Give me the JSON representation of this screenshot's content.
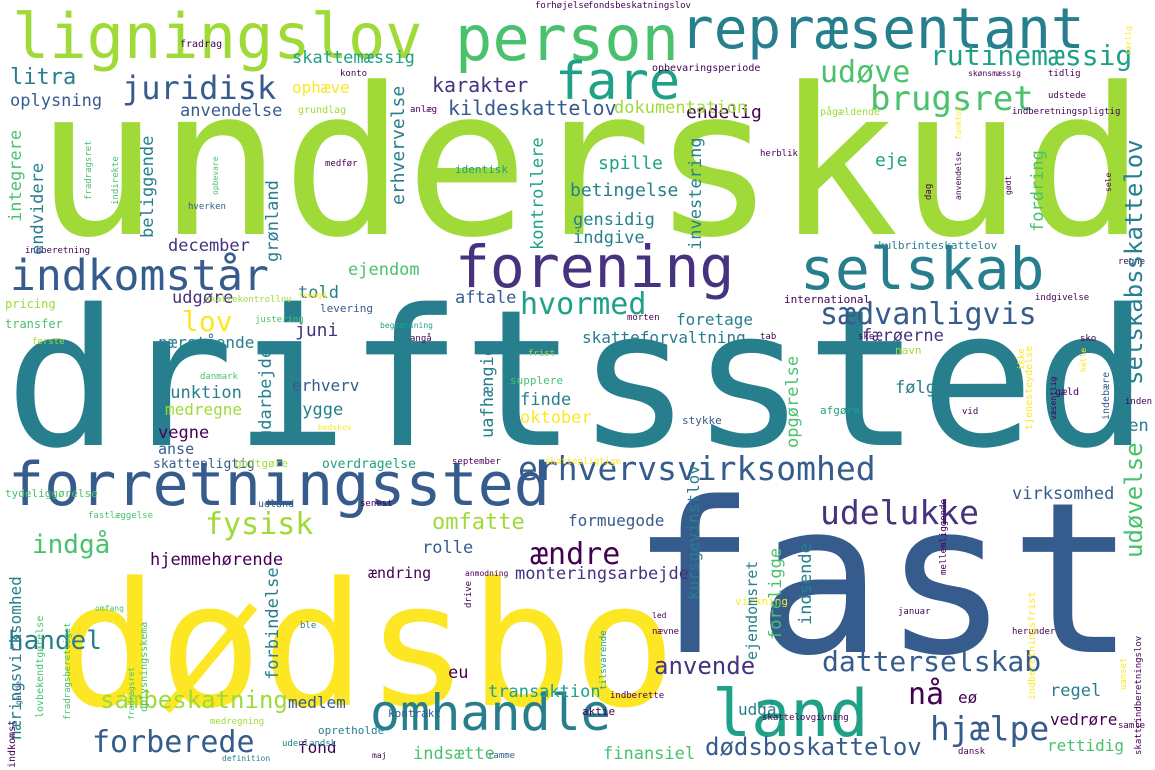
{
  "palette": {
    "yellow": "#fde725",
    "lime": "#a0da39",
    "green": "#4ac16d",
    "teal": "#1fa187",
    "blue": "#277f8e",
    "indigo": "#365c8d",
    "purple": "#46327e",
    "dark": "#440154",
    "background": "#ffffff"
  },
  "words": {
    "underskud": "underskud",
    "driftssted": "driftssted",
    "dodsbo": "dødsbo",
    "fast": "fast",
    "ligningslov": "ligningslov",
    "person": "person",
    "repraesentant": "repræsentant",
    "fare": "fare",
    "forening": "forening",
    "selskab": "selskab",
    "indkomstaar": "indkomstår",
    "forretningssted": "forretningssted",
    "omhandle": "omhandle",
    "land": "land",
    "erhvervsvirksomhed": "erhvervsvirksomhed",
    "udelukke": "udelukke",
    "datterselskab": "datterselskab",
    "hjaelpe": "hjælpe",
    "forberede": "forberede",
    "sambeskatning": "sambeskatning",
    "dodsboskattelov": "dødsboskattelov",
    "juridisk": "juridisk",
    "brugsret": "brugsret",
    "udove": "udøve",
    "rutinemaessig": "rutinemæssig",
    "hvormed": "hvormed",
    "saedvanligvis": "sædvanligvis",
    "selskabsskattelov": "selskabsskattelov",
    "fysisk": "fysisk",
    "indgaa": "indgå",
    "aendre": "ændre",
    "naa": "nå",
    "anvende": "anvende",
    "udovelse": "udøvelse",
    "karakter": "karakter",
    "lov": "lov",
    "litra": "litra",
    "handel": "handel",
    "omfatte": "omfatte",
    "endelig": "endelig",
    "skattemaessig": "skattemæssig",
    "ophaeve": "ophæve",
    "oplysning": "oplysning",
    "anvendelse": "anvendelse",
    "kildeskattelov": "kildeskattelov",
    "dokumentation": "dokumentation",
    "erhvervelse": "erhvervelse",
    "investering": "investering",
    "fordring": "fordring",
    "spille": "spille",
    "eje": "eje",
    "betingelse": "betingelse",
    "beliggende": "beliggende",
    "kontrollere": "kontrollere",
    "gensidig": "gensidig",
    "indgive": "indgive",
    "december": "december",
    "gronland": "grønland",
    "endvidere": "endvidere",
    "integrere": "integrere",
    "told": "told",
    "ejendom": "ejendom",
    "aftale": "aftale",
    "udgore": "udgøre",
    "juni": "juni",
    "naerstaaende": "nærstående",
    "foretage": "foretage",
    "skatteforvaltning": "skatteforvaltning",
    "faeroerne": "færøerne",
    "funktion": "funktion",
    "medregne": "medregne",
    "erhverv": "erhverv",
    "bygge": "bygge",
    "folge": "følge",
    "finde": "finde",
    "oktober": "oktober",
    "udarbejde": "udarbejde",
    "vegne": "vegne",
    "anse": "anse",
    "uafhaengig": "uafhængig",
    "opgorelse": "opgørelse",
    "kursgevinstlov": "kursgevinstlov",
    "virksomhed": "virksomhed",
    "sen": "sen",
    "hjemmehorende": "hjemmehørende",
    "rolle": "rolle",
    "formuegode": "formuegode",
    "aendring": "ændring",
    "monteringsarbejde": "monteringsarbejde",
    "forbindelse": "forbindelse",
    "naeringsvirksomhed": "næringsvirksomhed",
    "ejendomsret": "ejendomsret",
    "foreligge": "foreligge",
    "indsende": "indsende",
    "eu": "eu",
    "medlem": "medlem",
    "transaktion": "transaktion",
    "udgaa": "udgå",
    "regel": "regel",
    "fond": "fond",
    "indsaette": "indsætte",
    "finansiel": "finansiel",
    "eo": "eø",
    "vedrore": "vedrøre",
    "rettidig": "rettidig",
    "skattepligtig": "skattepligtig",
    "overdragelse": "overdragelse",
    "godtgore": "godtgøre",
    "kontrakt": "kontrakt",
    "opretholde": "opretholde",
    "international": "international",
    "pricing": "pricing",
    "transfer": "transfer",
    "levering": "levering",
    "indberetning": "indberetning",
    "kulbrinteskattelov": "kulbrinteskattelov",
    "supplere": "supplere",
    "frist": "frist",
    "navn": "navn",
    "afgore": "afgøre",
    "stykke": "stykke",
    "aktie": "aktie",
    "indberette": "indberette",
    "ramme": "ramme",
    "udlandsk": "udenlandsk",
    "medregning": "medregning",
    "fradrag": "fradrag",
    "konto": "konto",
    "anlaeg": "anlæg",
    "grundlag": "grundlag",
    "identisk": "identisk",
    "opbevaringsperiode": "opbevaringsperiode",
    "skonsmaessig": "skønsmæssig",
    "tidlig": "tidlig",
    "udstede": "udstede",
    "indberetningspligtig": "indberetningspligtig",
    "paagaeldende": "pågældende",
    "forhojelse": "forhøjelse",
    "fondsbeskatningslov": "fondsbeskatningslov",
    "godt": "gødt",
    "tab": "tab",
    "sele": "sele",
    "vaesentlig": "væsentlig",
    "vid": "vid",
    "gaeld": "gæld",
    "indgivelse": "indgivelse",
    "januar": "januar",
    "herunder": "herunder",
    "danmark": "danmark",
    "fradragsret": "fradragsret",
    "fradragsberettiget": "fradragsberettiget",
    "oplysningsskema": "oplysningsskema",
    "tydeliggorelse": "tydeliggørelse",
    "fastlaeggelse": "fastlæggelse",
    "lovbekendtgorelse": "lovbekendtgørelse",
    "indkomst": "indkomst",
    "udland": "udland",
    "senest": "senest",
    "anmodning": "anmodning",
    "drive": "drive",
    "virkning": "virkning",
    "led": "led",
    "naevne": "nævne",
    "tilsvarende": "tilsvarende",
    "definition": "definition",
    "maj": "maj",
    "dansk": "dansk",
    "skattelovgivning": "skattelovgivning",
    "herblik": "herblik",
    "medfor": "medfør",
    "opbevare": "opbevare",
    "hverken": "hverken",
    "skattekontrollov": "skattekontrollov",
    "justering": "justering",
    "begraensning": "begrænsning",
    "morten": "morten",
    "angaa": "angå",
    "mellemliggende": "mellemliggende",
    "tjenesteydelse": "tjenesteydelse",
    "september": "september",
    "dag": "dag",
    "anvaeltse": "anvendelse",
    "regne": "regne",
    "indebaere": "indebære",
    "inden": "inden",
    "funktue": "funktue",
    "indberetningsfrist": "indberetningsfrist",
    "skatteindberetningslov": "skatteindberetningslov",
    "uanset": "uanset",
    "samle": "samle",
    "omfang": "omfang",
    "ble": "ble",
    "galde": "galde",
    "forste": "første",
    "bedskov": "bedskov",
    "fremgaa": "fremgå",
    "saerlig": "særlig",
    "indirekte": "indirekte",
    "skattepligtige": "skattepligtige",
    "haelle": "hælle",
    "sko": "sko",
    "ske": "ske",
    "ikke": "ikke",
    "fradragsret2": "fradragsret"
  }
}
